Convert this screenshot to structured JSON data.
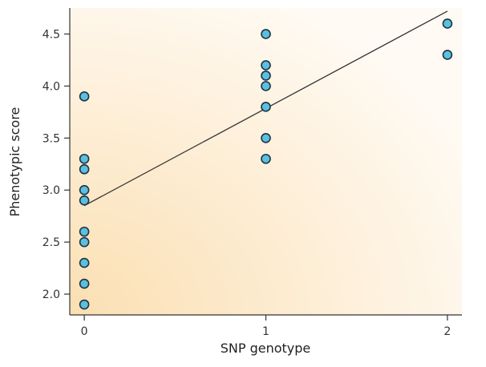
{
  "chart_data": {
    "type": "scatter",
    "xlabel": "SNP genotype",
    "ylabel": "Phenotypic score",
    "x_ticks": [
      "0",
      "1",
      "2"
    ],
    "y_ticks": [
      "2.0",
      "2.5",
      "3.0",
      "3.5",
      "4.0",
      "4.5"
    ],
    "xlim": [
      -0.08,
      2.08
    ],
    "ylim": [
      1.8,
      4.75
    ],
    "grid": false,
    "points": [
      {
        "x": 0,
        "y": 3.9
      },
      {
        "x": 0,
        "y": 3.3
      },
      {
        "x": 0,
        "y": 3.2
      },
      {
        "x": 0,
        "y": 3.0
      },
      {
        "x": 0,
        "y": 2.9
      },
      {
        "x": 0,
        "y": 2.6
      },
      {
        "x": 0,
        "y": 2.5
      },
      {
        "x": 0,
        "y": 2.3
      },
      {
        "x": 0,
        "y": 2.1
      },
      {
        "x": 0,
        "y": 1.9
      },
      {
        "x": 1,
        "y": 4.5
      },
      {
        "x": 1,
        "y": 4.2
      },
      {
        "x": 1,
        "y": 4.1
      },
      {
        "x": 1,
        "y": 4.0
      },
      {
        "x": 1,
        "y": 3.8
      },
      {
        "x": 1,
        "y": 3.5
      },
      {
        "x": 1,
        "y": 3.3
      },
      {
        "x": 2,
        "y": 4.6
      },
      {
        "x": 2,
        "y": 4.3
      }
    ],
    "fit_line": {
      "x": [
        0,
        2
      ],
      "y": [
        2.85,
        4.72
      ]
    },
    "colors": {
      "point_fill": "#5bbfe0",
      "point_stroke": "#1e3340",
      "background_warm": "#fbdfb2",
      "background_light": "#fffaf3",
      "line": "#333333",
      "axis": "#333333"
    }
  }
}
